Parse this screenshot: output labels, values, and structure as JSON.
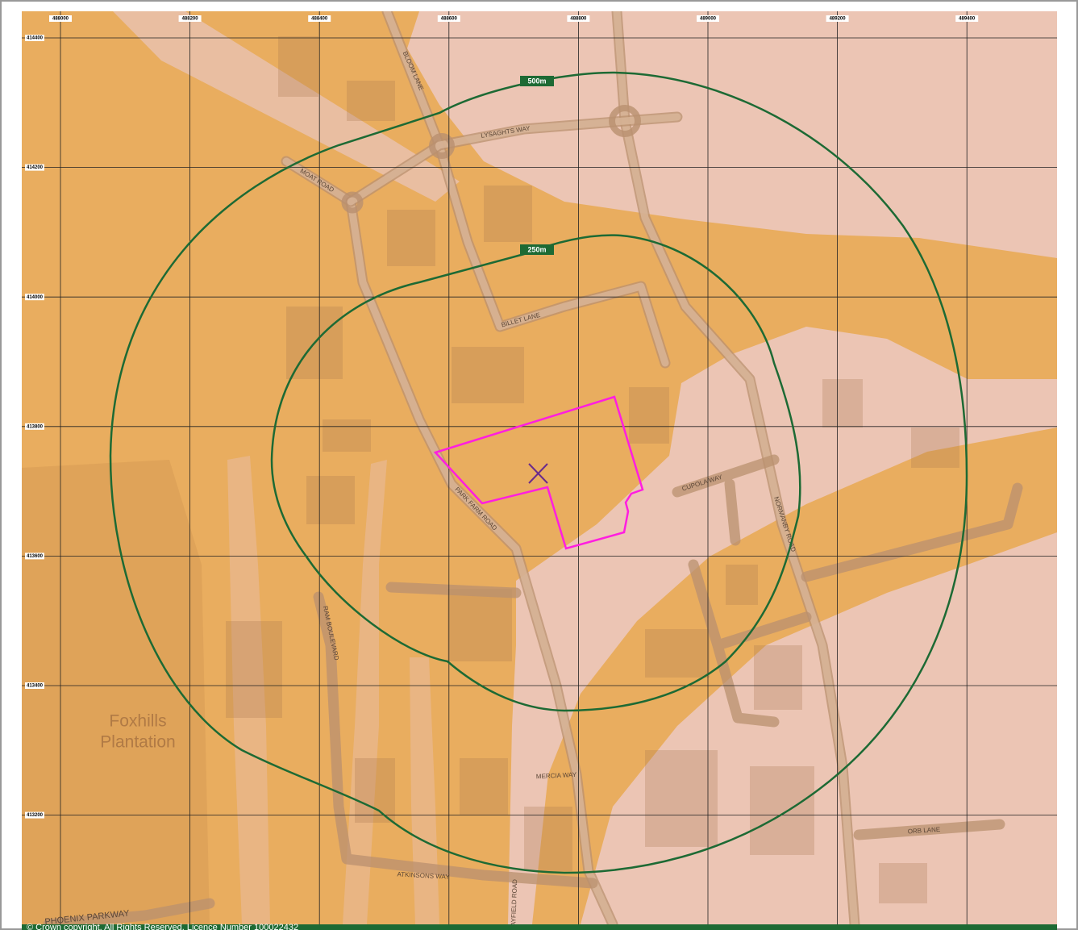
{
  "grid": {
    "eastings": [
      488000,
      488200,
      488400,
      488600,
      488800,
      489000,
      489200,
      489400
    ],
    "northings": [
      414400,
      414200,
      414000,
      413800,
      413600,
      413400,
      413200
    ]
  },
  "buffers": [
    {
      "label": "500m"
    },
    {
      "label": "250m"
    }
  ],
  "roads": [
    "BLOOM LANE",
    "LYSAGHTS WAY",
    "MOAT ROAD",
    "BILLET LANE",
    "PARK FARM ROAD",
    "CUPOLA WAY",
    "NORMANBY ROAD",
    "RAM BOULEVARD",
    "MERCIA WAY",
    "ORB LANE",
    "ATKINSONS WAY",
    "DAYFIELD ROAD",
    "PHOENIX PARKWAY"
  ],
  "place": [
    "Foxhills",
    "Plantation"
  ],
  "copyright": "© Crown copyright. All Rights Reserved. Licence Number 100022432"
}
